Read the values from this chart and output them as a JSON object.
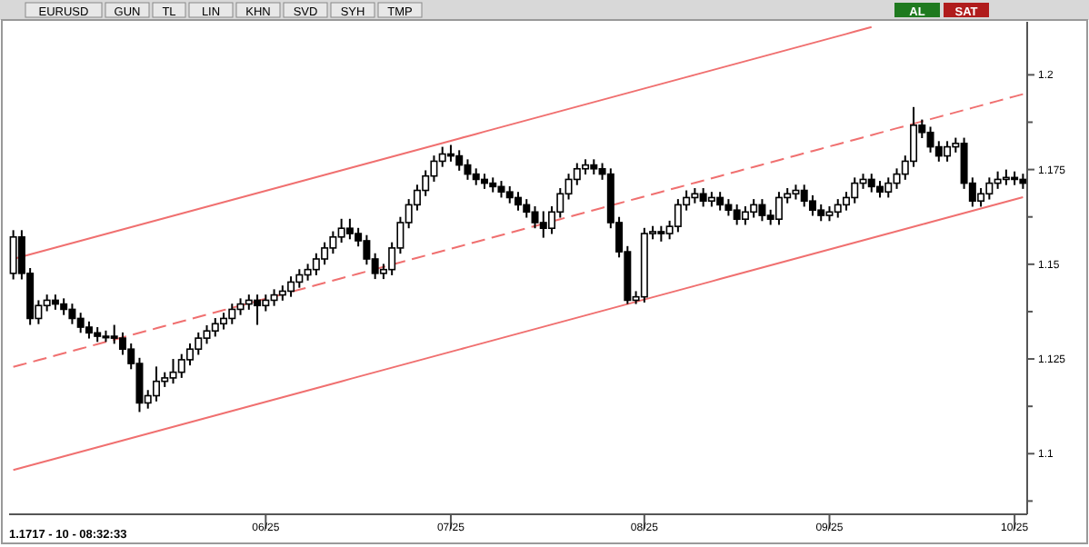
{
  "chart_data": {
    "type": "candlestick",
    "annotations": [
      "EURUSD",
      "GUN",
      "TL",
      "LIN",
      "KHN",
      "SVD",
      "SYH",
      "TMP",
      "AL",
      "SAT",
      "1.1717 - 10 - 08:32:33"
    ],
    "categories": [
      null,
      null,
      null,
      null,
      null,
      null,
      null,
      null,
      null,
      null,
      null,
      null,
      null,
      null,
      null,
      null,
      null,
      null,
      null,
      null,
      null,
      null,
      null,
      null,
      null,
      null,
      null,
      null,
      null,
      null,
      "06/25",
      null,
      null,
      null,
      null,
      null,
      null,
      null,
      null,
      null,
      null,
      null,
      null,
      null,
      null,
      null,
      null,
      null,
      null,
      null,
      null,
      null,
      "07/25",
      null,
      null,
      null,
      null,
      null,
      null,
      null,
      null,
      null,
      null,
      null,
      null,
      null,
      null,
      null,
      null,
      null,
      null,
      null,
      null,
      null,
      null,
      "08/25",
      null,
      null,
      null,
      null,
      null,
      null,
      null,
      null,
      null,
      null,
      null,
      null,
      null,
      null,
      null,
      null,
      null,
      null,
      null,
      null,
      null,
      "09/25",
      null,
      null,
      null,
      null,
      null,
      null,
      null,
      null,
      null,
      null,
      null,
      null,
      null,
      null,
      null,
      null,
      null,
      null,
      null,
      null,
      null,
      "10/25",
      null
    ],
    "ohlc": [
      [
        1.1476,
        1.159,
        1.146,
        1.1572
      ],
      [
        1.1572,
        1.159,
        1.146,
        1.1476
      ],
      [
        1.1476,
        1.149,
        1.134,
        1.1357
      ],
      [
        1.1357,
        1.1405,
        1.1342,
        1.1391
      ],
      [
        1.1391,
        1.142,
        1.1376,
        1.1405
      ],
      [
        1.1405,
        1.142,
        1.138,
        1.1395
      ],
      [
        1.1395,
        1.141,
        1.1366,
        1.1381
      ],
      [
        1.1381,
        1.1396,
        1.1342,
        1.1357
      ],
      [
        1.1357,
        1.1372,
        1.1319,
        1.1334
      ],
      [
        1.1334,
        1.1349,
        1.1304,
        1.1319
      ],
      [
        1.1319,
        1.1334,
        1.1295,
        1.131
      ],
      [
        1.131,
        1.1325,
        1.1295,
        1.131
      ],
      [
        1.131,
        1.134,
        1.129,
        1.1305
      ],
      [
        1.1305,
        1.132,
        1.1261,
        1.1276
      ],
      [
        1.1276,
        1.1291,
        1.1223,
        1.1238
      ],
      [
        1.1238,
        1.1253,
        1.111,
        1.1134
      ],
      [
        1.1134,
        1.1168,
        1.1119,
        1.1153
      ],
      [
        1.1153,
        1.123,
        1.1138,
        1.1191
      ],
      [
        1.1191,
        1.1215,
        1.1176,
        1.12
      ],
      [
        1.12,
        1.125,
        1.1185,
        1.1215
      ],
      [
        1.1215,
        1.1263,
        1.12,
        1.1248
      ],
      [
        1.1248,
        1.1291,
        1.1233,
        1.1276
      ],
      [
        1.1276,
        1.132,
        1.1261,
        1.1305
      ],
      [
        1.1305,
        1.1339,
        1.129,
        1.1324
      ],
      [
        1.1324,
        1.1358,
        1.1309,
        1.1343
      ],
      [
        1.1343,
        1.1372,
        1.1328,
        1.1357
      ],
      [
        1.1357,
        1.1396,
        1.1342,
        1.1381
      ],
      [
        1.1381,
        1.141,
        1.1366,
        1.1395
      ],
      [
        1.1395,
        1.142,
        1.138,
        1.1405
      ],
      [
        1.1405,
        1.142,
        1.134,
        1.1391
      ],
      [
        1.1391,
        1.142,
        1.1376,
        1.1405
      ],
      [
        1.1405,
        1.1434,
        1.139,
        1.1419
      ],
      [
        1.1419,
        1.1444,
        1.1404,
        1.1429
      ],
      [
        1.1429,
        1.1468,
        1.1414,
        1.1453
      ],
      [
        1.1453,
        1.1487,
        1.1438,
        1.1472
      ],
      [
        1.1472,
        1.1501,
        1.1457,
        1.1486
      ],
      [
        1.1486,
        1.1529,
        1.1471,
        1.1514
      ],
      [
        1.1514,
        1.1558,
        1.1499,
        1.1543
      ],
      [
        1.1543,
        1.1587,
        1.1528,
        1.1572
      ],
      [
        1.1572,
        1.162,
        1.1557,
        1.1595
      ],
      [
        1.1595,
        1.162,
        1.1566,
        1.1581
      ],
      [
        1.1581,
        1.1596,
        1.1547,
        1.1562
      ],
      [
        1.1562,
        1.1577,
        1.1499,
        1.1514
      ],
      [
        1.1514,
        1.1529,
        1.1461,
        1.1476
      ],
      [
        1.1476,
        1.1501,
        1.1461,
        1.1486
      ],
      [
        1.1486,
        1.1558,
        1.1471,
        1.1543
      ],
      [
        1.1543,
        1.1625,
        1.1528,
        1.161
      ],
      [
        1.161,
        1.1672,
        1.1595,
        1.1657
      ],
      [
        1.1657,
        1.171,
        1.1642,
        1.1695
      ],
      [
        1.1695,
        1.1748,
        1.168,
        1.1733
      ],
      [
        1.1733,
        1.1787,
        1.1718,
        1.1772
      ],
      [
        1.1772,
        1.181,
        1.1757,
        1.1791
      ],
      [
        1.1791,
        1.1815,
        1.1771,
        1.1786
      ],
      [
        1.1786,
        1.1801,
        1.1747,
        1.1762
      ],
      [
        1.1762,
        1.1777,
        1.1723,
        1.1738
      ],
      [
        1.1738,
        1.1753,
        1.1709,
        1.1724
      ],
      [
        1.1724,
        1.1739,
        1.1699,
        1.1714
      ],
      [
        1.1714,
        1.1729,
        1.169,
        1.1705
      ],
      [
        1.1705,
        1.172,
        1.1676,
        1.1691
      ],
      [
        1.1691,
        1.1706,
        1.1661,
        1.1676
      ],
      [
        1.1676,
        1.1691,
        1.1642,
        1.1657
      ],
      [
        1.1657,
        1.1672,
        1.1623,
        1.1638
      ],
      [
        1.1638,
        1.1653,
        1.1595,
        1.161
      ],
      [
        1.161,
        1.164,
        1.157,
        1.1595
      ],
      [
        1.1595,
        1.1653,
        1.158,
        1.1638
      ],
      [
        1.1638,
        1.1701,
        1.1623,
        1.1686
      ],
      [
        1.1686,
        1.1739,
        1.1671,
        1.1724
      ],
      [
        1.1724,
        1.1767,
        1.1709,
        1.1752
      ],
      [
        1.1752,
        1.1777,
        1.1737,
        1.1762
      ],
      [
        1.1762,
        1.1777,
        1.1737,
        1.1752
      ],
      [
        1.1752,
        1.1767,
        1.1723,
        1.1738
      ],
      [
        1.1738,
        1.1753,
        1.1595,
        1.161
      ],
      [
        1.161,
        1.1625,
        1.1518,
        1.1533
      ],
      [
        1.1533,
        1.1548,
        1.1395,
        1.1405
      ],
      [
        1.1405,
        1.1429,
        1.1395,
        1.1414
      ],
      [
        1.1414,
        1.1596,
        1.1399,
        1.1581
      ],
      [
        1.1581,
        1.1601,
        1.1566,
        1.1586
      ],
      [
        1.1586,
        1.1601,
        1.156,
        1.1581
      ],
      [
        1.1581,
        1.1615,
        1.1566,
        1.16
      ],
      [
        1.16,
        1.1672,
        1.1585,
        1.1657
      ],
      [
        1.1657,
        1.1695,
        1.1642,
        1.1676
      ],
      [
        1.1676,
        1.1701,
        1.1661,
        1.1686
      ],
      [
        1.1686,
        1.1701,
        1.1652,
        1.1667
      ],
      [
        1.1667,
        1.1691,
        1.1652,
        1.1676
      ],
      [
        1.1676,
        1.1691,
        1.1642,
        1.1657
      ],
      [
        1.1657,
        1.1672,
        1.1628,
        1.1643
      ],
      [
        1.1643,
        1.1658,
        1.1604,
        1.1619
      ],
      [
        1.1619,
        1.1653,
        1.1604,
        1.1638
      ],
      [
        1.1638,
        1.1672,
        1.1623,
        1.1657
      ],
      [
        1.1657,
        1.1672,
        1.1614,
        1.1629
      ],
      [
        1.1629,
        1.1644,
        1.1604,
        1.1619
      ],
      [
        1.1619,
        1.1691,
        1.1604,
        1.1676
      ],
      [
        1.1676,
        1.1701,
        1.1661,
        1.1686
      ],
      [
        1.1686,
        1.171,
        1.1671,
        1.1695
      ],
      [
        1.1695,
        1.171,
        1.1652,
        1.1667
      ],
      [
        1.1667,
        1.1682,
        1.1628,
        1.1643
      ],
      [
        1.1643,
        1.1658,
        1.1614,
        1.1629
      ],
      [
        1.1629,
        1.1653,
        1.1614,
        1.1638
      ],
      [
        1.1638,
        1.1672,
        1.1623,
        1.1657
      ],
      [
        1.1657,
        1.1691,
        1.1642,
        1.1676
      ],
      [
        1.1676,
        1.1729,
        1.1661,
        1.1714
      ],
      [
        1.1714,
        1.1739,
        1.1699,
        1.1724
      ],
      [
        1.1724,
        1.1739,
        1.169,
        1.1705
      ],
      [
        1.1705,
        1.172,
        1.1676,
        1.1691
      ],
      [
        1.1691,
        1.1729,
        1.1676,
        1.1714
      ],
      [
        1.1714,
        1.1753,
        1.1699,
        1.1738
      ],
      [
        1.1738,
        1.1787,
        1.1723,
        1.1772
      ],
      [
        1.1772,
        1.1915,
        1.1757,
        1.1867
      ],
      [
        1.1867,
        1.1882,
        1.1833,
        1.1848
      ],
      [
        1.1848,
        1.1863,
        1.1795,
        1.181
      ],
      [
        1.181,
        1.1825,
        1.1771,
        1.1786
      ],
      [
        1.1786,
        1.1825,
        1.1771,
        1.181
      ],
      [
        1.181,
        1.1834,
        1.1795,
        1.1819
      ],
      [
        1.1819,
        1.1834,
        1.1699,
        1.1714
      ],
      [
        1.1714,
        1.1729,
        1.1652,
        1.1667
      ],
      [
        1.1667,
        1.1701,
        1.1652,
        1.1686
      ],
      [
        1.1686,
        1.1729,
        1.1671,
        1.1714
      ],
      [
        1.1714,
        1.1745,
        1.1699,
        1.1724
      ],
      [
        1.1724,
        1.175,
        1.1709,
        1.1729
      ],
      [
        1.1729,
        1.1745,
        1.1709,
        1.1724
      ],
      [
        1.1724,
        1.1739,
        1.1699,
        1.1714
      ]
    ],
    "series": [
      {
        "type": "line",
        "values": [
          1.1514,
          1.152,
          1.1526,
          1.1532,
          1.1538,
          1.1544,
          1.155,
          1.1556,
          1.1562,
          1.1568,
          1.1574,
          1.158,
          1.1586,
          1.1592,
          1.1598,
          1.1604,
          1.161,
          1.1616,
          1.1622,
          1.1628,
          1.1634,
          1.164,
          1.1646,
          1.1652,
          1.1658,
          1.1664,
          1.167,
          1.1676,
          1.1682,
          1.1688,
          1.1694,
          1.17,
          1.1706,
          1.1712,
          1.1718,
          1.1724,
          1.173,
          1.1736,
          1.1742,
          1.1748,
          1.1754,
          1.176,
          1.1766,
          1.1772,
          1.1778,
          1.1784,
          1.179,
          1.1796,
          1.1802,
          1.1808,
          1.1814,
          1.182,
          1.1826,
          1.1832,
          1.1838,
          1.1844,
          1.185,
          1.1856,
          1.1862,
          1.1868,
          1.1874,
          1.188,
          1.1886,
          1.1892,
          1.1898,
          1.1904,
          1.191,
          1.1916,
          1.1922,
          1.1928,
          1.1934,
          1.194,
          1.1946,
          1.1952,
          1.1958,
          1.1964,
          1.197,
          1.1976,
          1.1982,
          1.1988,
          1.1994,
          1.2,
          1.2006,
          1.2012,
          1.2018,
          1.2024,
          1.203,
          1.2036,
          1.2042,
          1.2048,
          1.2054,
          1.206,
          1.2066,
          1.2072,
          1.2078,
          1.2084,
          1.209,
          1.2096,
          1.2102,
          1.2108,
          1.2114,
          1.212,
          1.2126,
          null,
          null,
          null,
          null,
          null,
          null,
          null,
          null,
          null,
          null,
          null,
          null,
          null,
          null,
          null,
          null,
          null,
          null
        ],
        "color": "#f07070",
        "line_style": "solid"
      },
      {
        "type": "line",
        "values": [
          1.1229,
          1.1235,
          1.1241,
          1.1247,
          1.1253,
          1.1259,
          1.1265,
          1.1271,
          1.1277,
          1.1283,
          1.1289,
          1.1295,
          1.1301,
          1.1307,
          1.1313,
          1.1319,
          1.1325,
          1.1331,
          1.1337,
          1.1343,
          1.1349,
          1.1355,
          1.1361,
          1.1367,
          1.1373,
          1.1379,
          1.1385,
          1.1391,
          1.1397,
          1.1403,
          1.1409,
          1.1415,
          1.1421,
          1.1427,
          1.1433,
          1.1439,
          1.1445,
          1.1451,
          1.1457,
          1.1463,
          1.1469,
          1.1475,
          1.1481,
          1.1487,
          1.1493,
          1.1499,
          1.1505,
          1.1511,
          1.1517,
          1.1523,
          1.1529,
          1.1535,
          1.1541,
          1.1547,
          1.1553,
          1.1559,
          1.1565,
          1.1571,
          1.1577,
          1.1583,
          1.1589,
          1.1595,
          1.1601,
          1.1607,
          1.1613,
          1.1619,
          1.1625,
          1.1631,
          1.1637,
          1.1643,
          1.1649,
          1.1655,
          1.1661,
          1.1667,
          1.1673,
          1.1679,
          1.1685,
          1.1691,
          1.1697,
          1.1703,
          1.1709,
          1.1715,
          1.1721,
          1.1727,
          1.1733,
          1.1739,
          1.1745,
          1.1751,
          1.1757,
          1.1763,
          1.1769,
          1.1775,
          1.1781,
          1.1787,
          1.1793,
          1.1799,
          1.1805,
          1.1811,
          1.1817,
          1.1823,
          1.1829,
          1.1835,
          1.1841,
          1.1847,
          1.1853,
          1.1859,
          1.1865,
          1.1871,
          1.1877,
          1.1883,
          1.1889,
          1.1895,
          1.1901,
          1.1907,
          1.1913,
          1.1919,
          1.1925,
          1.1931,
          1.1937,
          1.1943,
          1.1949
        ],
        "color": "#f07070",
        "line_style": "dashed"
      },
      {
        "type": "line",
        "values": [
          1.0957,
          1.0963,
          1.0969,
          1.0975,
          1.0981,
          1.0987,
          1.0993,
          1.0999,
          1.1005,
          1.1011,
          1.1017,
          1.1023,
          1.1029,
          1.1035,
          1.1041,
          1.1047,
          1.1053,
          1.1059,
          1.1065,
          1.1071,
          1.1077,
          1.1083,
          1.1089,
          1.1095,
          1.1101,
          1.1107,
          1.1113,
          1.1119,
          1.1125,
          1.1131,
          1.1137,
          1.1143,
          1.1149,
          1.1155,
          1.1161,
          1.1167,
          1.1173,
          1.1179,
          1.1185,
          1.1191,
          1.1197,
          1.1203,
          1.1209,
          1.1215,
          1.1221,
          1.1227,
          1.1233,
          1.1239,
          1.1245,
          1.1251,
          1.1257,
          1.1263,
          1.1269,
          1.1275,
          1.1281,
          1.1287,
          1.1293,
          1.1299,
          1.1305,
          1.1311,
          1.1317,
          1.1323,
          1.1329,
          1.1335,
          1.1341,
          1.1347,
          1.1353,
          1.1359,
          1.1365,
          1.1371,
          1.1377,
          1.1383,
          1.1389,
          1.1395,
          1.1401,
          1.1407,
          1.1413,
          1.1419,
          1.1425,
          1.1431,
          1.1437,
          1.1443,
          1.1449,
          1.1455,
          1.1461,
          1.1467,
          1.1473,
          1.1479,
          1.1485,
          1.1491,
          1.1497,
          1.1503,
          1.1509,
          1.1515,
          1.1521,
          1.1527,
          1.1533,
          1.1539,
          1.1545,
          1.1551,
          1.1557,
          1.1563,
          1.1569,
          1.1575,
          1.1581,
          1.1587,
          1.1593,
          1.1599,
          1.1605,
          1.1611,
          1.1617,
          1.1623,
          1.1629,
          1.1635,
          1.1641,
          1.1647,
          1.1653,
          1.1659,
          1.1665,
          1.1671,
          1.1677
        ],
        "color": "#f07070",
        "line_style": "solid"
      }
    ],
    "ylim": [
      1.084,
      1.214
    ],
    "yticks": [
      {
        "value": 1.0875,
        "label": null
      },
      1.1,
      {
        "value": 1.1125,
        "label": null
      },
      1.125,
      {
        "value": 1.1375,
        "label": null
      },
      1.15,
      {
        "value": 1.1625,
        "label": null
      },
      1.175,
      {
        "value": 1.1875,
        "label": null
      },
      1.2
    ],
    "grid": false
  }
}
